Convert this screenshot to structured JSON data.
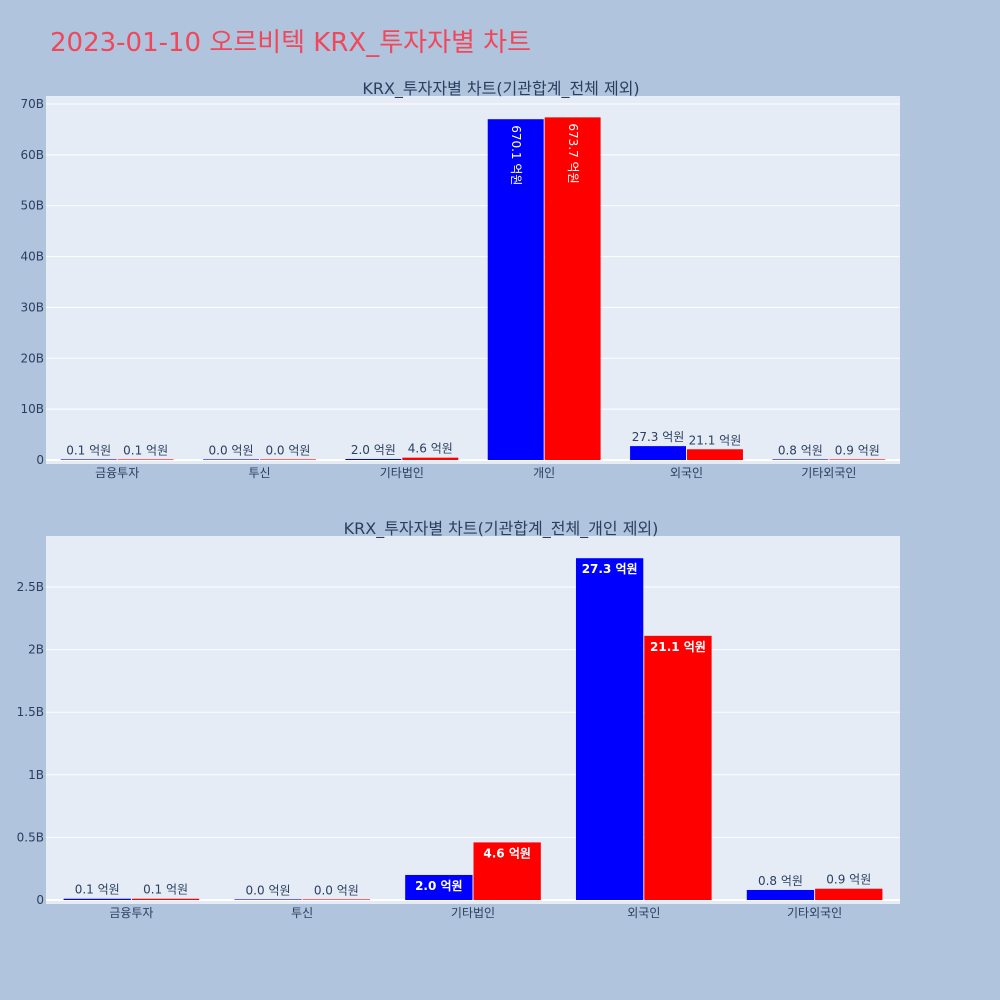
{
  "title": "2023-01-10 오르비텍 KRX_투자자별 차트",
  "chart_data": [
    {
      "type": "bar",
      "title": "KRX_투자자별 차트(기관합계_전체 제외)",
      "categories": [
        "금융투자",
        "투신",
        "기타법인",
        "개인",
        "외국인",
        "기타외국인"
      ],
      "series": [
        {
          "color": "#0000ff",
          "values": [
            0.01,
            0.0,
            0.2,
            67.01,
            2.73,
            0.08
          ],
          "labels": [
            "0.1 억원",
            "0.0 억원",
            "2.0 억원",
            "670.1 억원",
            "27.3 억원",
            "0.8 억원"
          ]
        },
        {
          "color": "#ff0000",
          "values": [
            0.01,
            0.0,
            0.46,
            67.37,
            2.11,
            0.09
          ],
          "labels": [
            "0.1 억원",
            "0.0 억원",
            "4.6 억원",
            "673.7 억원",
            "21.1 억원",
            "0.9 억원"
          ]
        }
      ],
      "ylim": [
        0,
        70
      ],
      "yticks": [
        0,
        10,
        20,
        30,
        40,
        50,
        60,
        70
      ],
      "ytick_labels": [
        "0",
        "10B",
        "20B",
        "30B",
        "40B",
        "50B",
        "60B",
        "70B"
      ],
      "grid": true
    },
    {
      "type": "bar",
      "title": "KRX_투자자별 차트(기관합계_전체_개인 제외)",
      "categories": [
        "금융투자",
        "투신",
        "기타법인",
        "외국인",
        "기타외국인"
      ],
      "series": [
        {
          "color": "#0000ff",
          "values": [
            0.01,
            0.0,
            0.2,
            2.73,
            0.08
          ],
          "labels": [
            "0.1 억원",
            "0.0 억원",
            "2.0 억원",
            "27.3 억원",
            "0.8 억원"
          ]
        },
        {
          "color": "#ff0000",
          "values": [
            0.01,
            0.0,
            0.46,
            2.11,
            0.09
          ],
          "labels": [
            "0.1 억원",
            "0.0 억원",
            "4.6 억원",
            "21.1 억원",
            "0.9 억원"
          ]
        }
      ],
      "ylim": [
        0,
        2.9
      ],
      "yticks": [
        0,
        0.5,
        1,
        1.5,
        2,
        2.5
      ],
      "ytick_labels": [
        "0",
        "0.5B",
        "1B",
        "1.5B",
        "2B",
        "2.5B"
      ],
      "grid": true
    }
  ]
}
